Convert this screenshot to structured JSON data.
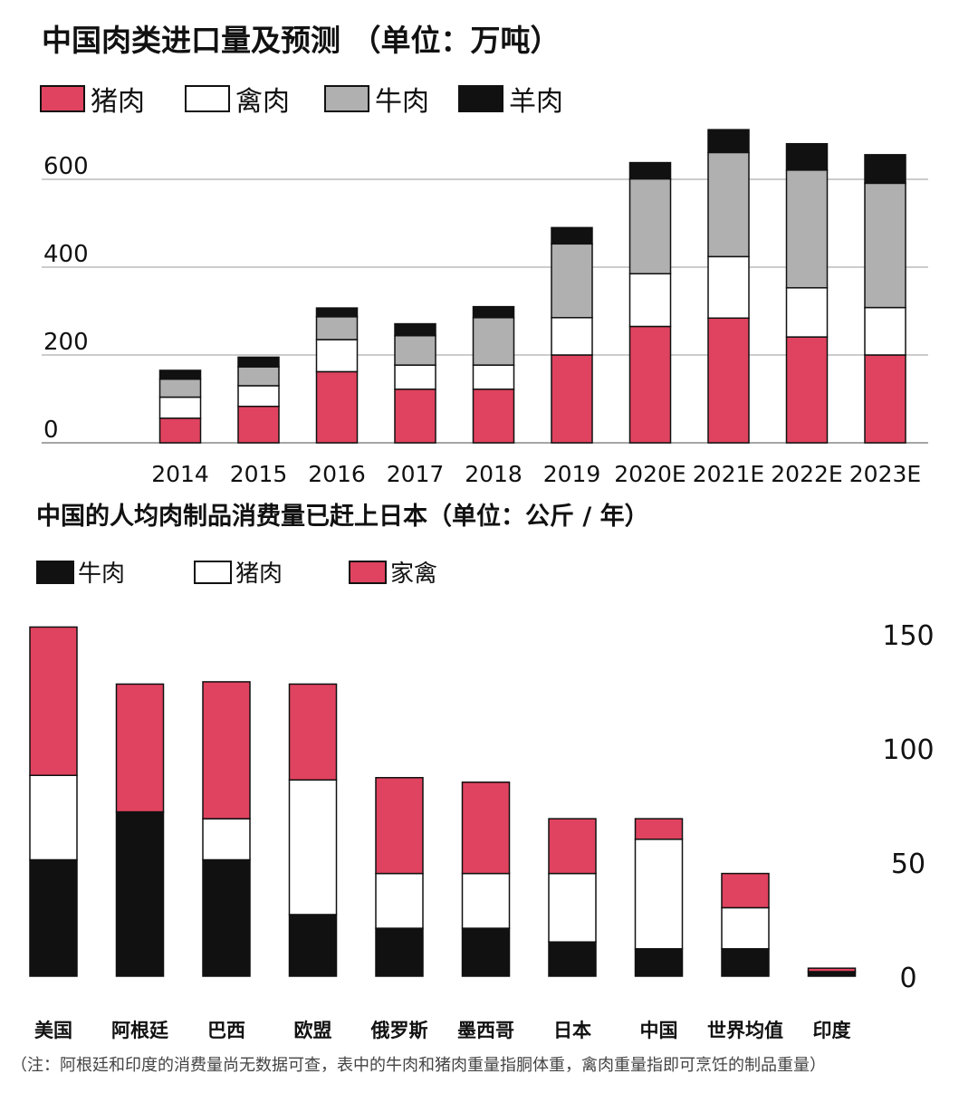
{
  "chart_data": [
    {
      "type": "bar",
      "stacked": true,
      "title": "中国肉类进口量及预测 （单位：万吨）",
      "categories": [
        "2014",
        "2015",
        "2016",
        "2017",
        "2018",
        "2019",
        "2020E",
        "2021E",
        "2022E",
        "2023E"
      ],
      "series": [
        {
          "name": "猪肉",
          "color": "#e0435f",
          "values": [
            56,
            83,
            162,
            122,
            122,
            200,
            265,
            284,
            241,
            200
          ]
        },
        {
          "name": "禽肉",
          "color": "#ffffff",
          "values": [
            48,
            47,
            73,
            55,
            55,
            85,
            120,
            140,
            112,
            108
          ]
        },
        {
          "name": "牛肉",
          "color": "#b0b0b0",
          "values": [
            41,
            43,
            52,
            67,
            108,
            168,
            216,
            237,
            268,
            283
          ]
        },
        {
          "name": "羊肉",
          "color": "#111111",
          "values": [
            20,
            22,
            20,
            27,
            25,
            37,
            37,
            52,
            60,
            65
          ]
        }
      ],
      "yticks": [
        0,
        200,
        400,
        600
      ],
      "ylim": [
        0,
        730
      ],
      "grid": true,
      "legend": "top-left"
    },
    {
      "type": "bar",
      "stacked": true,
      "title": "中国的人均肉制品消费量已赶上日本（单位：公斤 / 年）",
      "categories": [
        "美国",
        "阿根廷",
        "巴西",
        "欧盟",
        "俄罗斯",
        "墨西哥",
        "日本",
        "中国",
        "世界均值",
        "印度"
      ],
      "series": [
        {
          "name": "牛肉",
          "color": "#111111",
          "values": [
            51,
            72,
            51,
            27,
            21,
            21,
            15,
            12,
            12,
            2
          ]
        },
        {
          "name": "猪肉",
          "color": "#ffffff",
          "values": [
            37,
            0,
            18,
            59,
            24,
            24,
            30,
            48,
            18,
            0
          ]
        },
        {
          "name": "家禽",
          "color": "#e0435f",
          "values": [
            65,
            56,
            60,
            42,
            42,
            40,
            24,
            9,
            15,
            1.5
          ]
        }
      ],
      "yticks": [
        0,
        50,
        100,
        150
      ],
      "ylim": [
        0,
        155
      ],
      "y_axis_side": "right",
      "grid": false,
      "legend": "top-left"
    }
  ],
  "note": "（注：阿根廷和印度的消费量尚无数据可查，表中的牛肉和猪肉重量指胴体重，禽肉重量指即可烹饪的制品重量）"
}
